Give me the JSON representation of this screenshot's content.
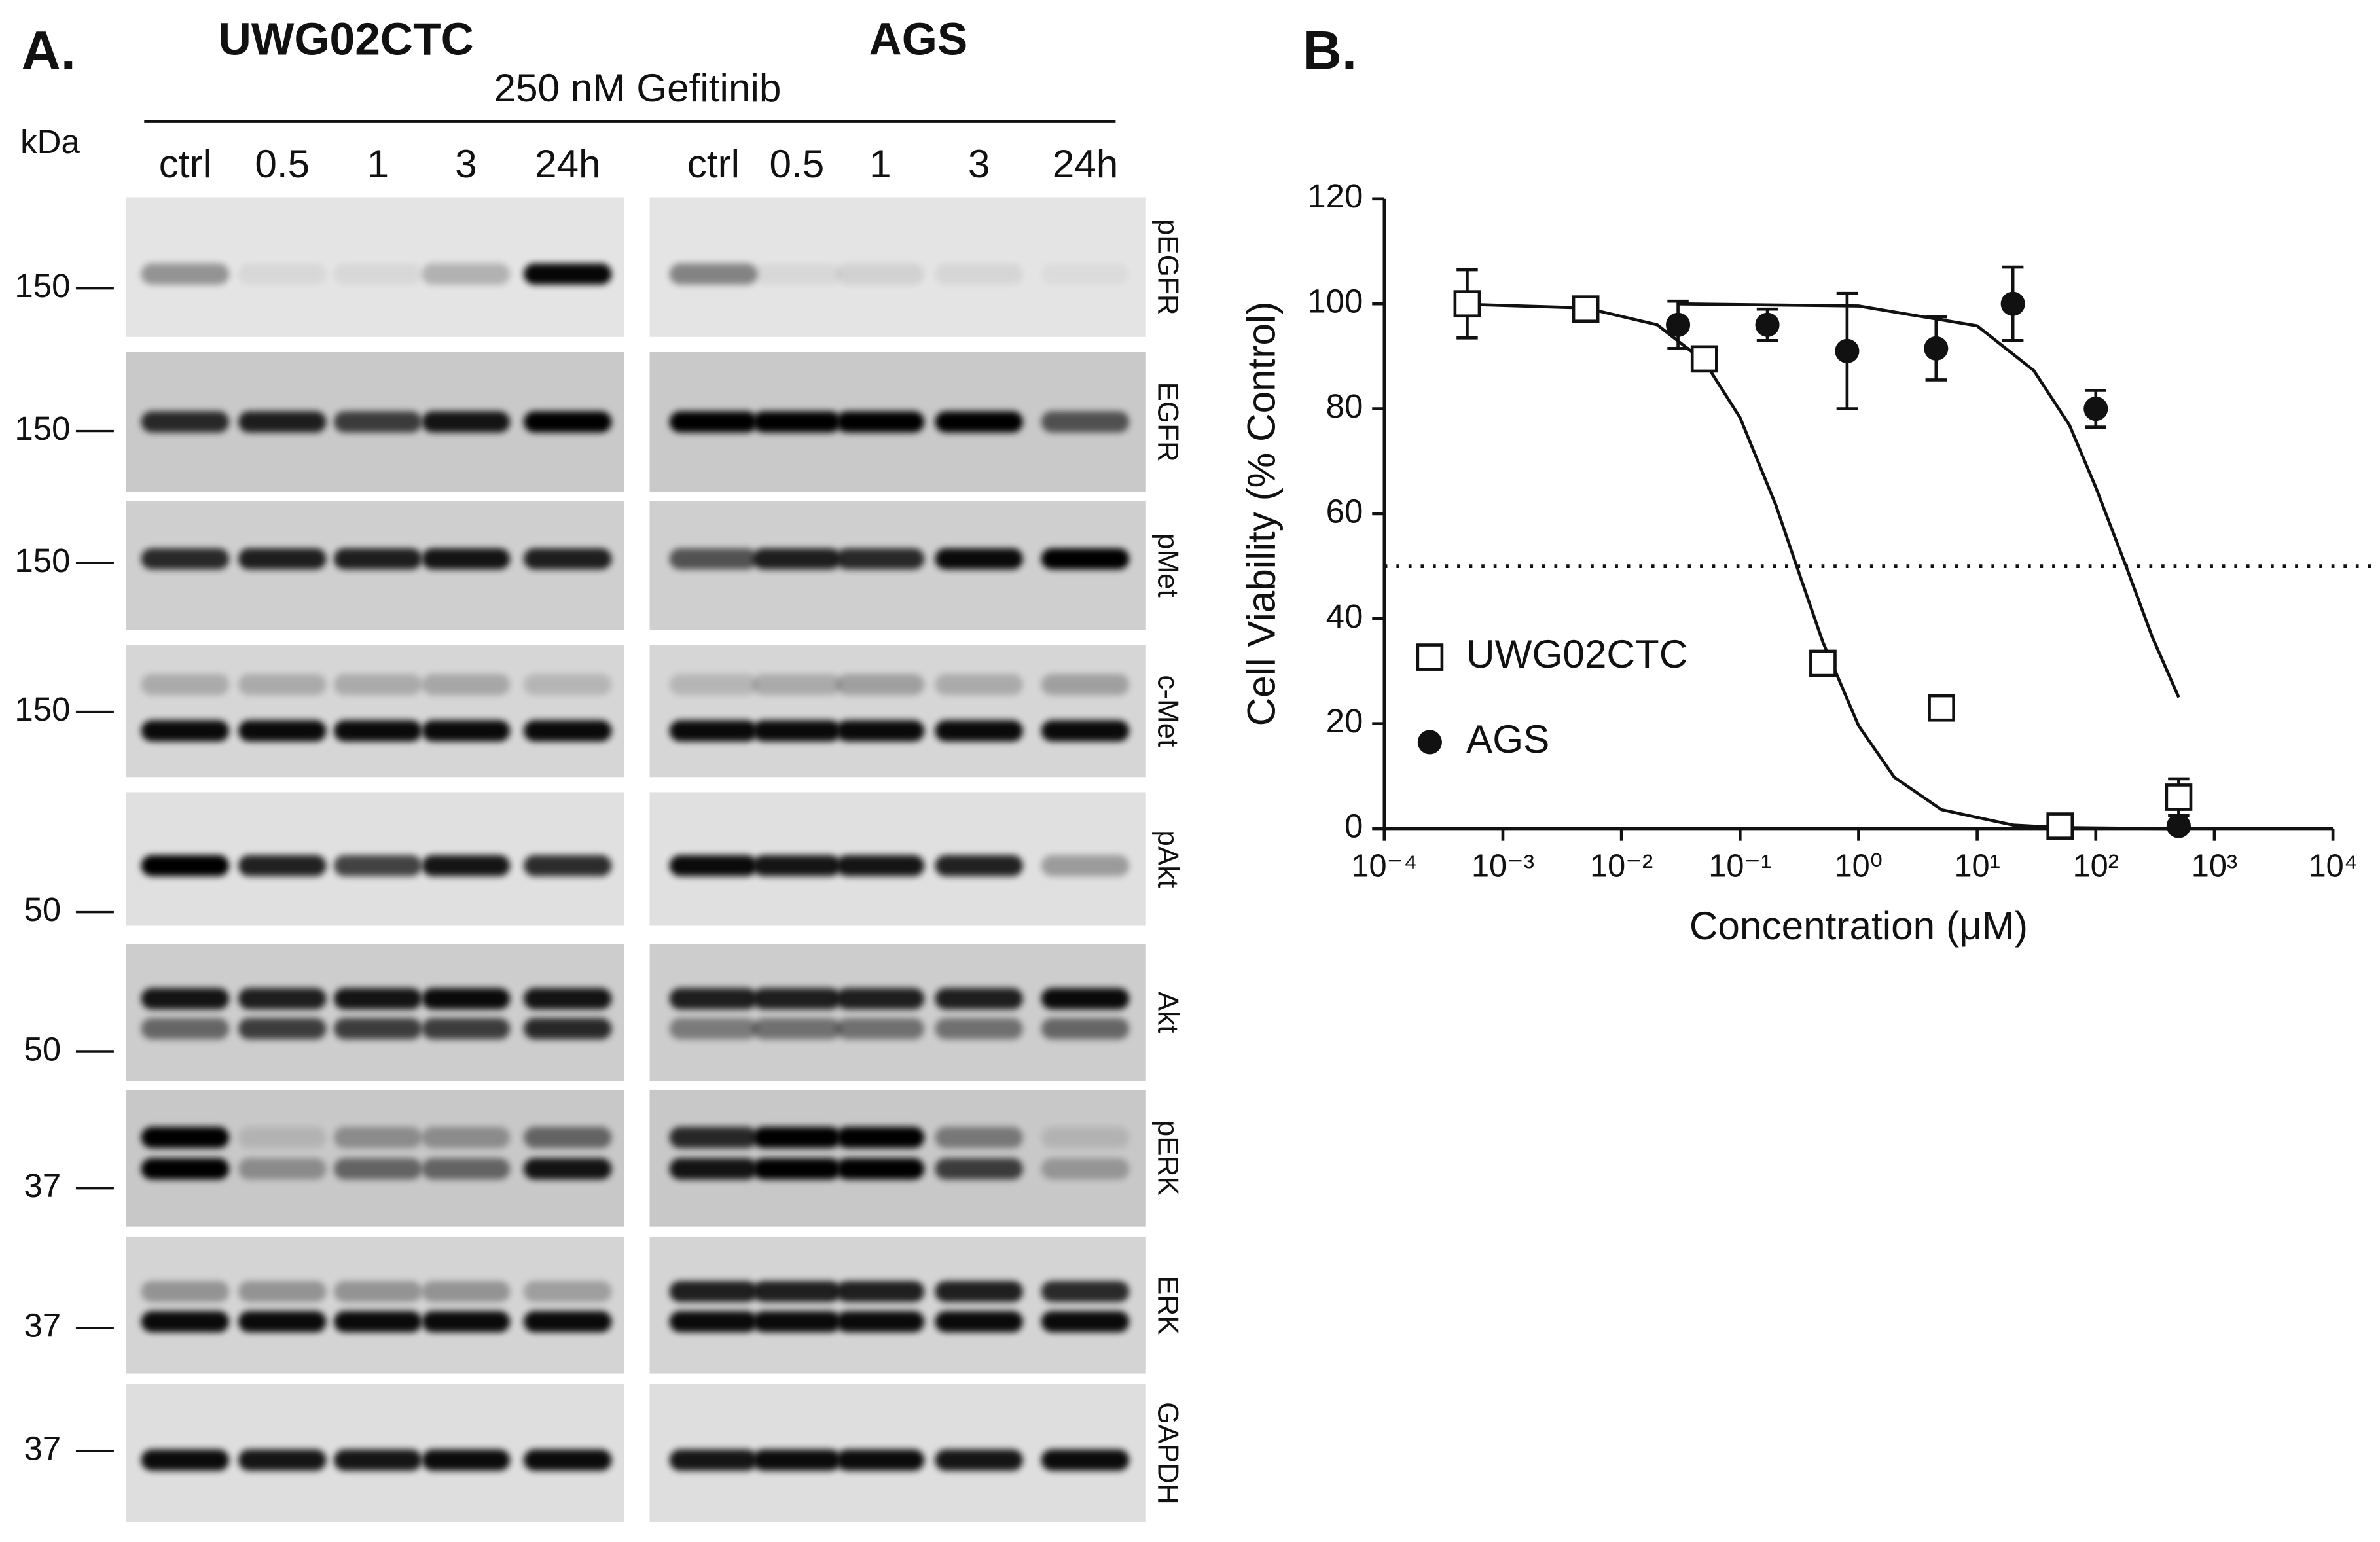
{
  "panel_a": {
    "label": "A.",
    "cell_lines": [
      "UWG02CTC",
      "AGS"
    ],
    "treatment": "250 nM Gefitinib",
    "unit": "kDa",
    "lanes": [
      "ctrl",
      "0.5",
      "1",
      "3",
      "24h"
    ],
    "rows": [
      {
        "protein": "pEGFR",
        "marker": 150
      },
      {
        "protein": "EGFR",
        "marker": 150
      },
      {
        "protein": "pMet",
        "marker": 150
      },
      {
        "protein": "c-Met",
        "marker": 150
      },
      {
        "protein": "pAkt",
        "marker": 50
      },
      {
        "protein": "Akt",
        "marker": 50
      },
      {
        "protein": "pERK",
        "marker": 37
      },
      {
        "protein": "ERK",
        "marker": 37
      },
      {
        "protein": "GAPDH",
        "marker": 37
      }
    ]
  },
  "chart_data": {
    "type": "scatter",
    "panel_label": "B.",
    "x_label": "Concentration (μM)",
    "y_label": "Cell Viability (% Control)",
    "log_x": true,
    "xlim": [
      0.0001,
      10000
    ],
    "xticks": [
      {
        "value": 0.0001,
        "label": "10⁻⁴"
      },
      {
        "value": 0.001,
        "label": "10⁻³"
      },
      {
        "value": 0.01,
        "label": "10⁻²"
      },
      {
        "value": 0.1,
        "label": "10⁻¹"
      },
      {
        "value": 1,
        "label": "10⁰"
      },
      {
        "value": 10,
        "label": "10¹"
      },
      {
        "value": 100,
        "label": "10²"
      },
      {
        "value": 1000,
        "label": "10³"
      },
      {
        "value": 10000,
        "label": "10⁴"
      }
    ],
    "ylim": [
      0,
      120
    ],
    "yticks": [
      0,
      20,
      40,
      60,
      80,
      100,
      120
    ],
    "hline": 50,
    "legend": "left",
    "series": [
      {
        "name": "UWG02CTC",
        "color": "#111111",
        "marker": "square",
        "x": [
          0.0005,
          0.005,
          0.05,
          0.5,
          5,
          50,
          500
        ],
        "values": [
          100,
          99,
          89.5,
          31.5,
          23,
          0.5,
          6
        ],
        "errors": [
          6.5,
          null,
          null,
          null,
          null,
          null,
          3.5
        ],
        "fit": {
          "x": [
            0.0005,
            0.005,
            0.02,
            0.05,
            0.1,
            0.2,
            0.3,
            0.5,
            1,
            2,
            5,
            20,
            50,
            500
          ],
          "y": [
            99.9,
            99.2,
            96,
            89,
            78.3,
            61.7,
            50,
            35.5,
            19.6,
            9.8,
            3.6,
            0.7,
            0.2,
            0
          ]
        }
      },
      {
        "name": "AGS",
        "color": "#111111",
        "marker": "circle",
        "x": [
          0.03,
          0.17,
          0.8,
          4.5,
          20,
          100,
          500
        ],
        "values": [
          96,
          96,
          91,
          91.5,
          100,
          80,
          0.5
        ],
        "errors": [
          4.5,
          3,
          11,
          6,
          7,
          3.5,
          null
        ],
        "fit": {
          "x": [
            0.03,
            1,
            10,
            30,
            60,
            100,
            180,
            300,
            500
          ],
          "y": [
            100,
            99.6,
            95.8,
            87.3,
            76.9,
            65,
            50,
            36.5,
            25
          ]
        }
      }
    ]
  }
}
